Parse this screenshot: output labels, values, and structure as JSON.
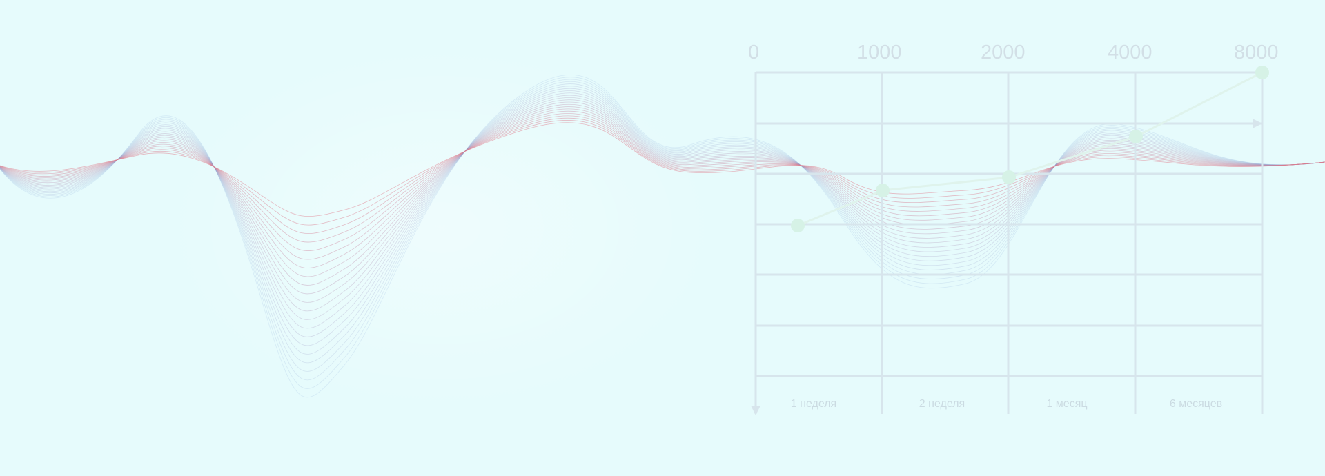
{
  "background_color": "#e6fbfc",
  "grid_color": "#d7e5ec",
  "line_color": "#dff3ec",
  "point_color": "#d6f2e6",
  "wave_colors": [
    "#7fa0d8",
    "#e07a8a"
  ],
  "top_labels": [
    "0",
    "1000",
    "2000",
    "4000",
    "8000"
  ],
  "period_labels": [
    "1 неделя",
    "2 неделя",
    "1 месяц",
    "6 месяцев"
  ],
  "series_values": [
    0,
    1000,
    2000,
    4000,
    8000
  ]
}
